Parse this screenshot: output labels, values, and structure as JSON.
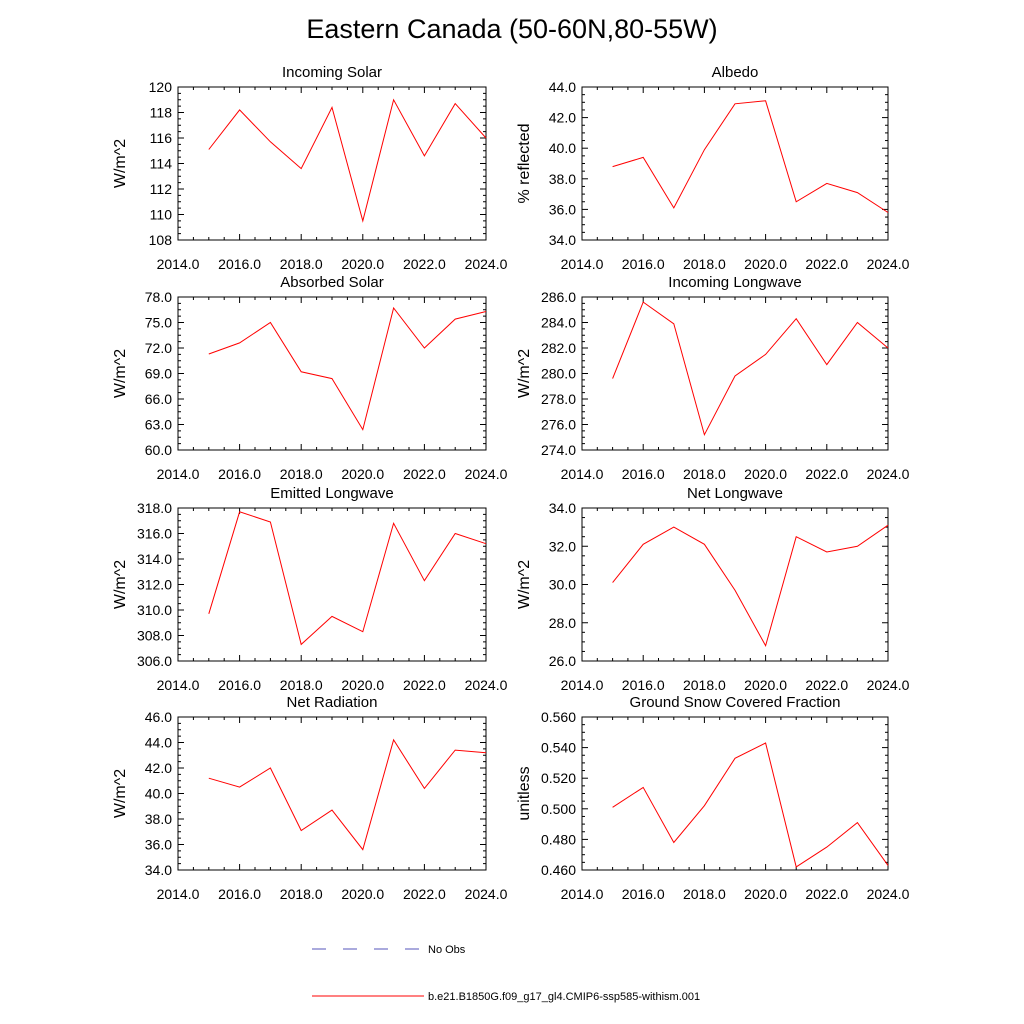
{
  "figure": {
    "title": "Eastern Canada (50-60N,80-55W)",
    "legend": [
      {
        "label": "No Obs",
        "color": "#5555bb",
        "dash": true
      },
      {
        "label": "b.e21.B1850G.f09_g17_gl4.CMIP6-ssp585-withism.001",
        "color": "#ff0000",
        "dash": false
      }
    ]
  },
  "chart_data": [
    {
      "type": "line",
      "title": "Incoming Solar",
      "ylabel": "W/m^2",
      "xlim": [
        2014,
        2024
      ],
      "ylim": [
        108,
        120
      ],
      "xticks": [
        "2014.0",
        "2016.0",
        "2018.0",
        "2020.0",
        "2022.0",
        "2024.0"
      ],
      "yticks": [
        "108",
        "110",
        "112",
        "114",
        "116",
        "118",
        "120"
      ],
      "x": [
        2015,
        2016,
        2017,
        2018,
        2019,
        2020,
        2021,
        2022,
        2023,
        2024
      ],
      "series": [
        {
          "values": [
            115.1,
            118.2,
            115.7,
            113.6,
            118.4,
            109.5,
            119.0,
            114.6,
            118.7,
            116.0
          ],
          "color": "#ff0000"
        }
      ]
    },
    {
      "type": "line",
      "title": "Albedo",
      "ylabel": "% reflected",
      "xlim": [
        2014,
        2024
      ],
      "ylim": [
        34,
        44
      ],
      "xticks": [
        "2014.0",
        "2016.0",
        "2018.0",
        "2020.0",
        "2022.0",
        "2024.0"
      ],
      "yticks": [
        "34.0",
        "36.0",
        "38.0",
        "40.0",
        "42.0",
        "44.0"
      ],
      "x": [
        2015,
        2016,
        2017,
        2018,
        2019,
        2020,
        2021,
        2022,
        2023,
        2024
      ],
      "series": [
        {
          "values": [
            38.8,
            39.4,
            36.1,
            39.9,
            42.9,
            43.1,
            36.5,
            37.7,
            37.1,
            35.8
          ],
          "color": "#ff0000"
        }
      ]
    },
    {
      "type": "line",
      "title": "Absorbed Solar",
      "ylabel": "W/m^2",
      "xlim": [
        2014,
        2024
      ],
      "ylim": [
        60,
        78
      ],
      "xticks": [
        "2014.0",
        "2016.0",
        "2018.0",
        "2020.0",
        "2022.0",
        "2024.0"
      ],
      "yticks": [
        "60.0",
        "63.0",
        "66.0",
        "69.0",
        "72.0",
        "75.0",
        "78.0"
      ],
      "x": [
        2015,
        2016,
        2017,
        2018,
        2019,
        2020,
        2021,
        2022,
        2023,
        2024
      ],
      "series": [
        {
          "values": [
            71.3,
            72.6,
            75.0,
            69.2,
            68.4,
            62.4,
            76.7,
            72.0,
            75.4,
            76.3
          ],
          "color": "#ff0000"
        }
      ]
    },
    {
      "type": "line",
      "title": "Incoming Longwave",
      "ylabel": "W/m^2",
      "xlim": [
        2014,
        2024
      ],
      "ylim": [
        274,
        286
      ],
      "xticks": [
        "2014.0",
        "2016.0",
        "2018.0",
        "2020.0",
        "2022.0",
        "2024.0"
      ],
      "yticks": [
        "274.0",
        "276.0",
        "278.0",
        "280.0",
        "282.0",
        "284.0",
        "286.0"
      ],
      "x": [
        2015,
        2016,
        2017,
        2018,
        2019,
        2020,
        2021,
        2022,
        2023,
        2024
      ],
      "series": [
        {
          "values": [
            279.6,
            285.6,
            283.9,
            275.2,
            279.8,
            281.5,
            284.3,
            280.7,
            284.0,
            282.0
          ],
          "color": "#ff0000"
        }
      ]
    },
    {
      "type": "line",
      "title": "Emitted Longwave",
      "ylabel": "W/m^2",
      "xlim": [
        2014,
        2024
      ],
      "ylim": [
        306,
        318
      ],
      "xticks": [
        "2014.0",
        "2016.0",
        "2018.0",
        "2020.0",
        "2022.0",
        "2024.0"
      ],
      "yticks": [
        "306.0",
        "308.0",
        "310.0",
        "312.0",
        "314.0",
        "316.0",
        "318.0"
      ],
      "x": [
        2015,
        2016,
        2017,
        2018,
        2019,
        2020,
        2021,
        2022,
        2023,
        2024
      ],
      "series": [
        {
          "values": [
            309.7,
            317.7,
            316.9,
            307.3,
            309.5,
            308.3,
            316.8,
            312.3,
            316.0,
            315.2
          ],
          "color": "#ff0000"
        }
      ]
    },
    {
      "type": "line",
      "title": "Net Longwave",
      "ylabel": "W/m^2",
      "xlim": [
        2014,
        2024
      ],
      "ylim": [
        26,
        34
      ],
      "xticks": [
        "2014.0",
        "2016.0",
        "2018.0",
        "2020.0",
        "2022.0",
        "2024.0"
      ],
      "yticks": [
        "26.0",
        "28.0",
        "30.0",
        "32.0",
        "34.0"
      ],
      "x": [
        2015,
        2016,
        2017,
        2018,
        2019,
        2020,
        2021,
        2022,
        2023,
        2024
      ],
      "series": [
        {
          "values": [
            30.1,
            32.1,
            33.0,
            32.1,
            29.7,
            26.8,
            32.5,
            31.7,
            32.0,
            33.1
          ],
          "color": "#ff0000"
        }
      ]
    },
    {
      "type": "line",
      "title": "Net Radiation",
      "ylabel": "W/m^2",
      "xlim": [
        2014,
        2024
      ],
      "ylim": [
        34,
        46
      ],
      "xticks": [
        "2014.0",
        "2016.0",
        "2018.0",
        "2020.0",
        "2022.0",
        "2024.0"
      ],
      "yticks": [
        "34.0",
        "36.0",
        "38.0",
        "40.0",
        "42.0",
        "44.0",
        "46.0"
      ],
      "x": [
        2015,
        2016,
        2017,
        2018,
        2019,
        2020,
        2021,
        2022,
        2023,
        2024
      ],
      "series": [
        {
          "values": [
            41.2,
            40.5,
            42.0,
            37.1,
            38.7,
            35.6,
            44.2,
            40.4,
            43.4,
            43.2
          ],
          "color": "#ff0000"
        }
      ]
    },
    {
      "type": "line",
      "title": "Ground Snow Covered Fraction",
      "ylabel": "unitless",
      "xlim": [
        2014,
        2024
      ],
      "ylim": [
        0.46,
        0.56
      ],
      "xticks": [
        "2014.0",
        "2016.0",
        "2018.0",
        "2020.0",
        "2022.0",
        "2024.0"
      ],
      "yticks": [
        "0.460",
        "0.480",
        "0.500",
        "0.520",
        "0.540",
        "0.560"
      ],
      "x": [
        2015,
        2016,
        2017,
        2018,
        2019,
        2020,
        2021,
        2022,
        2023,
        2024
      ],
      "series": [
        {
          "values": [
            0.501,
            0.514,
            0.478,
            0.502,
            0.533,
            0.543,
            0.462,
            0.475,
            0.491,
            0.463
          ],
          "color": "#ff0000"
        }
      ]
    }
  ]
}
